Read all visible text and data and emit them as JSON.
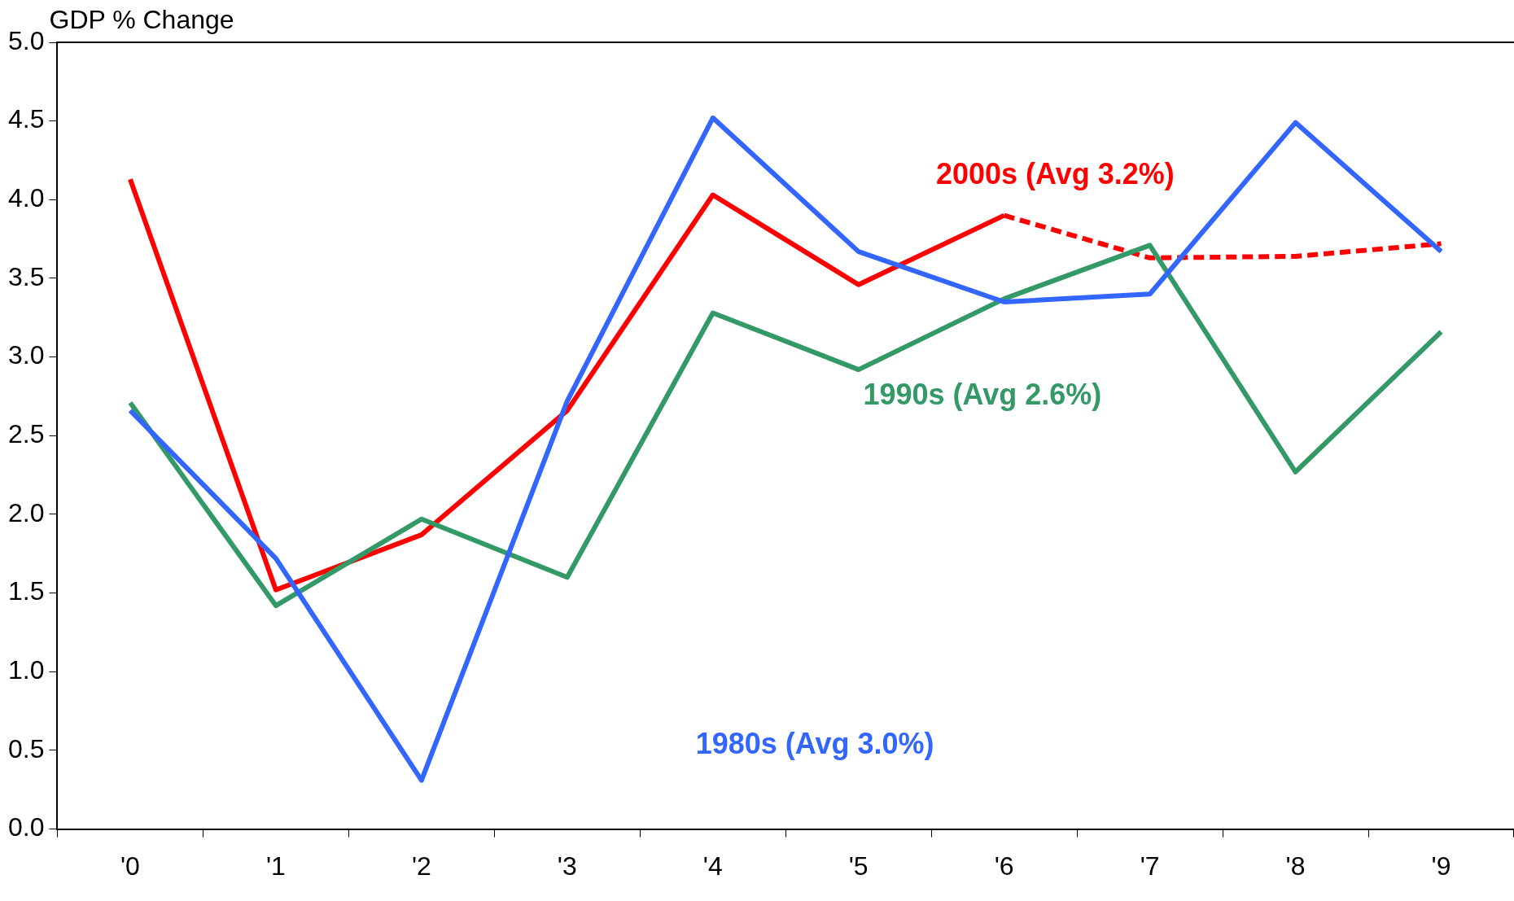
{
  "chart_data": {
    "type": "line",
    "ylabel": "GDP % Change",
    "categories": [
      "'0",
      "'1",
      "'2",
      "'3",
      "'4",
      "'5",
      "'6",
      "'7",
      "'8",
      "'9"
    ],
    "series": [
      {
        "name": "1980s (Avg 3.0%)",
        "color": "#3366ff",
        "values": [
          2.66,
          1.72,
          0.31,
          2.72,
          4.52,
          3.67,
          3.35,
          3.4,
          4.49,
          3.67
        ]
      },
      {
        "name": "1990s (Avg 2.6%)",
        "color": "#339966",
        "values": [
          2.71,
          1.42,
          1.97,
          1.6,
          3.28,
          2.92,
          3.37,
          3.71,
          2.27,
          3.16
        ]
      },
      {
        "name": "2000s (Avg 3.2%)",
        "color": "#ff0000",
        "values": [
          4.13,
          1.52,
          1.87,
          2.66,
          4.03,
          3.46,
          3.9,
          null,
          null,
          null
        ]
      },
      {
        "color": "#ff0000",
        "line_style": "dashed",
        "values": [
          null,
          null,
          null,
          null,
          null,
          null,
          3.9,
          3.63,
          3.64,
          3.72
        ]
      }
    ],
    "ylim": [
      0,
      5
    ],
    "yticks": [
      {
        "value": 0,
        "label": "0.0"
      },
      {
        "value": 0.5,
        "label": "0.5"
      },
      {
        "value": 1,
        "label": "1.0"
      },
      {
        "value": 1.5,
        "label": "1.5"
      },
      {
        "value": 2,
        "label": "2.0"
      },
      {
        "value": 2.5,
        "label": "2.5"
      },
      {
        "value": 3,
        "label": "3.0"
      },
      {
        "value": 3.5,
        "label": "3.5"
      },
      {
        "value": 4,
        "label": "4.0"
      },
      {
        "value": 4.5,
        "label": "4.5"
      },
      {
        "value": 5,
        "label": "5.0"
      }
    ],
    "grid": false,
    "legend": false,
    "marker": "none",
    "line_style": "solid"
  }
}
